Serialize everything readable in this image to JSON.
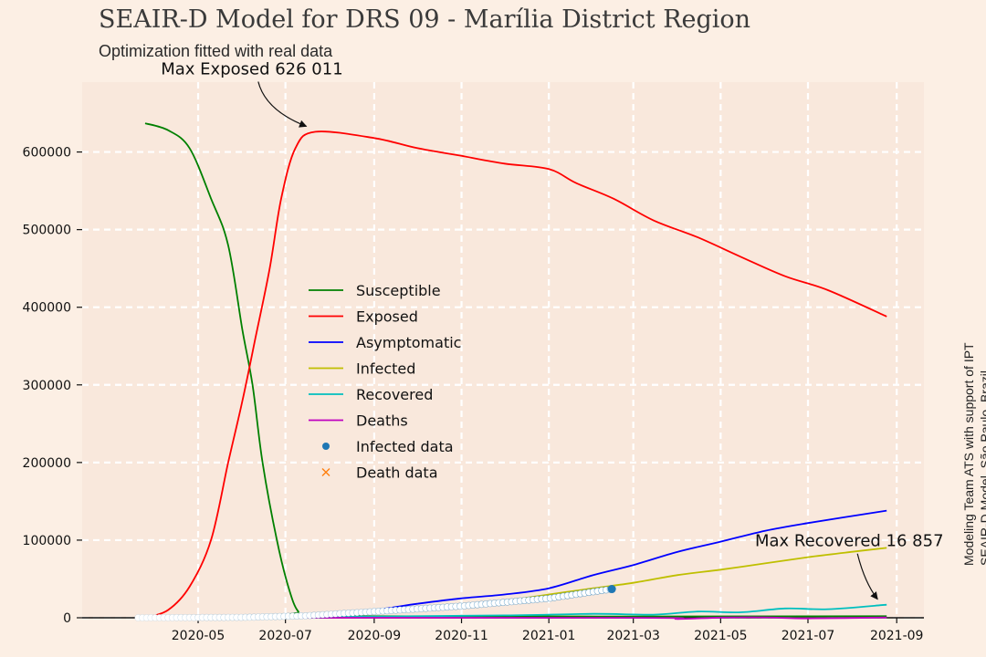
{
  "title": "SEAIR-D Model for DRS 09 - Marília District Region",
  "subtitle": "Optimization fitted with real data",
  "side_note": [
    "Modeling Team ATS with support of IPT",
    "SEAIR-D Model, São Paulo, Brazil"
  ],
  "colors": {
    "background": "#fcefe4",
    "plot_area": "#f9e8dc",
    "Susceptible": "#008000",
    "Exposed": "#ff0000",
    "Asymptomatic": "#0000ff",
    "Infected": "#bfbf00",
    "Recovered": "#00bfbf",
    "Deaths": "#bf00bf",
    "Infected data": "#1f77b4",
    "Death data": "#ff7f0e"
  },
  "chart_data": {
    "type": "line",
    "title": "SEAIR-D Model for DRS 09 - Marília District Region",
    "subtitle": "Optimization fitted with real data",
    "xlabel": "",
    "ylabel": "",
    "x_type": "date",
    "xlim": [
      "2020-02-10",
      "2021-09-20"
    ],
    "ylim": [
      0,
      690000
    ],
    "x_ticks": [
      "2020-05",
      "2020-07",
      "2020-09",
      "2020-11",
      "2021-01",
      "2021-03",
      "2021-05",
      "2021-07",
      "2021-09"
    ],
    "y_ticks": [
      0,
      100000,
      200000,
      300000,
      400000,
      500000,
      600000
    ],
    "grid": true,
    "legend_position": "center-left",
    "series": [
      {
        "name": "Susceptible",
        "points": [
          [
            "2020-03-25",
            637000
          ],
          [
            "2020-04-10",
            628000
          ],
          [
            "2020-04-25",
            605000
          ],
          [
            "2020-05-10",
            540000
          ],
          [
            "2020-05-22",
            480000
          ],
          [
            "2020-06-01",
            370000
          ],
          [
            "2020-06-08",
            300000
          ],
          [
            "2020-06-15",
            200000
          ],
          [
            "2020-06-25",
            100000
          ],
          [
            "2020-07-03",
            40000
          ],
          [
            "2020-07-10",
            8000
          ],
          [
            "2020-07-20",
            2000
          ],
          [
            "2021-08-25",
            2000
          ]
        ]
      },
      {
        "name": "Exposed",
        "points": [
          [
            "2020-03-25",
            0
          ],
          [
            "2020-04-10",
            10000
          ],
          [
            "2020-04-25",
            40000
          ],
          [
            "2020-05-10",
            100000
          ],
          [
            "2020-05-22",
            200000
          ],
          [
            "2020-06-01",
            280000
          ],
          [
            "2020-06-10",
            360000
          ],
          [
            "2020-06-20",
            450000
          ],
          [
            "2020-06-28",
            540000
          ],
          [
            "2020-07-08",
            605000
          ],
          [
            "2020-07-22",
            626011
          ],
          [
            "2020-09-01",
            618000
          ],
          [
            "2020-10-01",
            605000
          ],
          [
            "2020-11-01",
            595000
          ],
          [
            "2020-12-01",
            585000
          ],
          [
            "2021-01-01",
            578000
          ],
          [
            "2021-01-20",
            560000
          ],
          [
            "2021-02-15",
            540000
          ],
          [
            "2021-03-15",
            512000
          ],
          [
            "2021-04-15",
            490000
          ],
          [
            "2021-05-15",
            465000
          ],
          [
            "2021-06-15",
            440000
          ],
          [
            "2021-07-15",
            422000
          ],
          [
            "2021-08-25",
            388000
          ]
        ]
      },
      {
        "name": "Asymptomatic",
        "points": [
          [
            "2020-03-25",
            0
          ],
          [
            "2020-07-01",
            2000
          ],
          [
            "2020-08-01",
            6000
          ],
          [
            "2020-09-01",
            10000
          ],
          [
            "2020-10-01",
            18000
          ],
          [
            "2020-11-01",
            25000
          ],
          [
            "2020-12-01",
            30000
          ],
          [
            "2021-01-01",
            38000
          ],
          [
            "2021-02-01",
            55000
          ],
          [
            "2021-03-01",
            68000
          ],
          [
            "2021-04-01",
            85000
          ],
          [
            "2021-05-01",
            98000
          ],
          [
            "2021-06-01",
            112000
          ],
          [
            "2021-07-01",
            122000
          ],
          [
            "2021-08-25",
            138000
          ]
        ]
      },
      {
        "name": "Infected",
        "points": [
          [
            "2020-03-25",
            0
          ],
          [
            "2020-08-01",
            3000
          ],
          [
            "2020-10-01",
            12000
          ],
          [
            "2020-12-01",
            22000
          ],
          [
            "2021-01-01",
            30000
          ],
          [
            "2021-02-01",
            38000
          ],
          [
            "2021-03-01",
            45000
          ],
          [
            "2021-04-01",
            55000
          ],
          [
            "2021-05-01",
            62000
          ],
          [
            "2021-06-01",
            70000
          ],
          [
            "2021-07-01",
            78000
          ],
          [
            "2021-08-01",
            85000
          ],
          [
            "2021-08-25",
            90000
          ]
        ]
      },
      {
        "name": "Recovered",
        "points": [
          [
            "2020-03-25",
            0
          ],
          [
            "2020-08-01",
            1000
          ],
          [
            "2020-12-01",
            3000
          ],
          [
            "2021-02-01",
            5000
          ],
          [
            "2021-03-15",
            4000
          ],
          [
            "2021-04-15",
            8000
          ],
          [
            "2021-05-15",
            7000
          ],
          [
            "2021-06-15",
            12000
          ],
          [
            "2021-07-15",
            11000
          ],
          [
            "2021-08-25",
            16857
          ]
        ]
      },
      {
        "name": "Deaths",
        "points": [
          [
            "2020-03-25",
            0
          ],
          [
            "2021-03-01",
            0
          ],
          [
            "2021-04-01",
            -1500
          ],
          [
            "2021-05-01",
            200
          ],
          [
            "2021-06-01",
            500
          ],
          [
            "2021-07-01",
            -800
          ],
          [
            "2021-08-25",
            400
          ]
        ]
      }
    ],
    "scatter_series": [
      {
        "name": "Infected data",
        "marker": "circle",
        "points": [
          [
            "2020-03-20",
            0
          ],
          [
            "2020-06-01",
            500
          ],
          [
            "2020-07-15",
            2500
          ],
          [
            "2020-09-01",
            8000
          ],
          [
            "2020-11-01",
            15000
          ],
          [
            "2021-01-01",
            25000
          ],
          [
            "2021-02-14",
            37000
          ]
        ]
      },
      {
        "name": "Death data",
        "marker": "x",
        "points": []
      }
    ],
    "annotations": [
      {
        "text": "Max Exposed 626 011",
        "x": "2020-07-22",
        "y": 626011,
        "text_x": "2020-04-05",
        "text_y": 700000
      },
      {
        "text": "Max Recovered 16 857",
        "x": "2021-08-25",
        "y": 16857,
        "text_x": "2021-05-25",
        "text_y": 92000
      }
    ]
  }
}
